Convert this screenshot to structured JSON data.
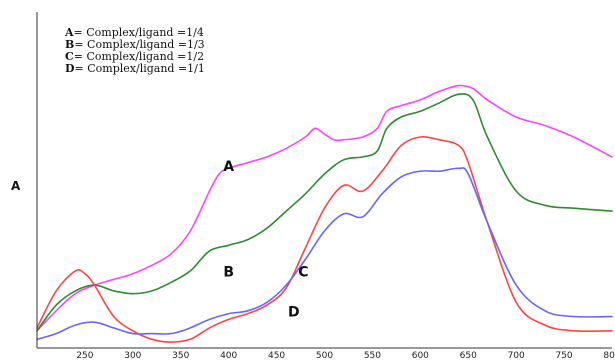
{
  "chart_data": {
    "type": "line",
    "ylabel": "A",
    "xlabel": "",
    "xlim": [
      200,
      800
    ],
    "ylim": [
      0,
      1
    ],
    "x_ticks": [
      250,
      300,
      350,
      400,
      450,
      500,
      550,
      600,
      650,
      700,
      750,
      800
    ],
    "x_tick_labels": [
      "250",
      "300",
      "350",
      "400",
      "450",
      "500",
      "550",
      "600",
      "650",
      "700",
      "750",
      "800"
    ],
    "legend": [
      {
        "key": "A",
        "text": "= Complex/ligand =1/4"
      },
      {
        "key": "B",
        "text": "= Complex/ligand =1/3"
      },
      {
        "key": "C",
        "text": "= Complex/ligand =1/2"
      },
      {
        "key": "D",
        "text": "= Complex/ligand =1/1"
      }
    ],
    "series": [
      {
        "name": "A",
        "color": "#ff44ff",
        "x": [
          200,
          220,
          240,
          260,
          280,
          300,
          320,
          340,
          360,
          380,
          390,
          400,
          420,
          440,
          460,
          480,
          490,
          500,
          510,
          520,
          540,
          555,
          565,
          580,
          600,
          620,
          640,
          655,
          670,
          700,
          730,
          760,
          800
        ],
        "y": [
          0.05,
          0.12,
          0.18,
          0.21,
          0.23,
          0.25,
          0.28,
          0.32,
          0.4,
          0.54,
          0.6,
          0.62,
          0.64,
          0.66,
          0.69,
          0.73,
          0.76,
          0.74,
          0.72,
          0.72,
          0.73,
          0.76,
          0.82,
          0.84,
          0.86,
          0.89,
          0.91,
          0.9,
          0.86,
          0.8,
          0.77,
          0.73,
          0.66
        ]
      },
      {
        "name": "B",
        "color": "#2e8b2e",
        "x": [
          200,
          220,
          240,
          260,
          280,
          300,
          320,
          340,
          360,
          380,
          400,
          420,
          440,
          460,
          480,
          500,
          520,
          540,
          555,
          565,
          580,
          600,
          620,
          640,
          655,
          670,
          700,
          730,
          760,
          800
        ],
        "y": [
          0.05,
          0.14,
          0.19,
          0.21,
          0.19,
          0.18,
          0.19,
          0.22,
          0.26,
          0.33,
          0.35,
          0.37,
          0.41,
          0.47,
          0.53,
          0.6,
          0.65,
          0.66,
          0.68,
          0.76,
          0.8,
          0.82,
          0.85,
          0.88,
          0.86,
          0.73,
          0.54,
          0.49,
          0.48,
          0.47
        ]
      },
      {
        "name": "C",
        "color": "#ff4444",
        "x": [
          200,
          220,
          240,
          250,
          260,
          280,
          300,
          320,
          340,
          360,
          380,
          400,
          420,
          440,
          460,
          480,
          500,
          520,
          540,
          560,
          580,
          600,
          620,
          640,
          650,
          670,
          700,
          730,
          760,
          800
        ],
        "y": [
          0.06,
          0.19,
          0.26,
          0.25,
          0.21,
          0.1,
          0.05,
          0.02,
          0.01,
          0.02,
          0.06,
          0.09,
          0.11,
          0.14,
          0.2,
          0.34,
          0.48,
          0.56,
          0.54,
          0.61,
          0.7,
          0.73,
          0.72,
          0.7,
          0.64,
          0.43,
          0.15,
          0.07,
          0.05,
          0.05
        ]
      },
      {
        "name": "D",
        "color": "#6666ff",
        "x": [
          200,
          220,
          240,
          260,
          280,
          300,
          320,
          340,
          360,
          380,
          400,
          420,
          440,
          460,
          480,
          500,
          520,
          540,
          560,
          580,
          600,
          620,
          640,
          650,
          670,
          700,
          730,
          760,
          800
        ],
        "y": [
          0.02,
          0.04,
          0.07,
          0.08,
          0.06,
          0.04,
          0.04,
          0.04,
          0.06,
          0.09,
          0.11,
          0.12,
          0.15,
          0.21,
          0.3,
          0.4,
          0.46,
          0.45,
          0.53,
          0.59,
          0.61,
          0.61,
          0.62,
          0.6,
          0.43,
          0.21,
          0.12,
          0.1,
          0.1
        ]
      }
    ],
    "curve_labels": [
      {
        "text": "A",
        "x": 400,
        "y": 0.61
      },
      {
        "text": "B",
        "x": 400,
        "y": 0.24
      },
      {
        "text": "C",
        "x": 478,
        "y": 0.24
      },
      {
        "text": "D",
        "x": 468,
        "y": 0.1
      }
    ]
  }
}
